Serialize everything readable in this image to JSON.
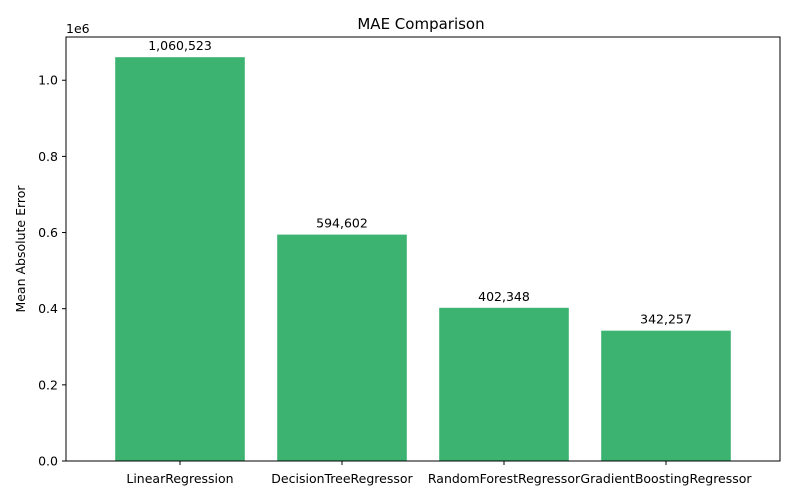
{
  "chart_data": {
    "type": "bar",
    "title": "MAE Comparison",
    "xlabel": "",
    "ylabel": "Mean Absolute Error",
    "y_offset_label": "1e6",
    "categories": [
      "LinearRegression",
      "DecisionTreeRegressor",
      "RandomForestRegressor",
      "GradientBoostingRegressor"
    ],
    "values": [
      1060523,
      594602,
      402348,
      342257
    ],
    "value_labels": [
      "1,060,523",
      "594,602",
      "402,348",
      "342,257"
    ],
    "ylim": [
      0,
      1113549
    ],
    "y_ticks": [
      0,
      200000,
      400000,
      600000,
      800000,
      1000000
    ],
    "y_tick_labels": [
      "0.0",
      "0.2",
      "0.4",
      "0.6",
      "0.8",
      "1.0"
    ],
    "bar_color": "#3cb371",
    "grid": false,
    "legend": "none"
  }
}
